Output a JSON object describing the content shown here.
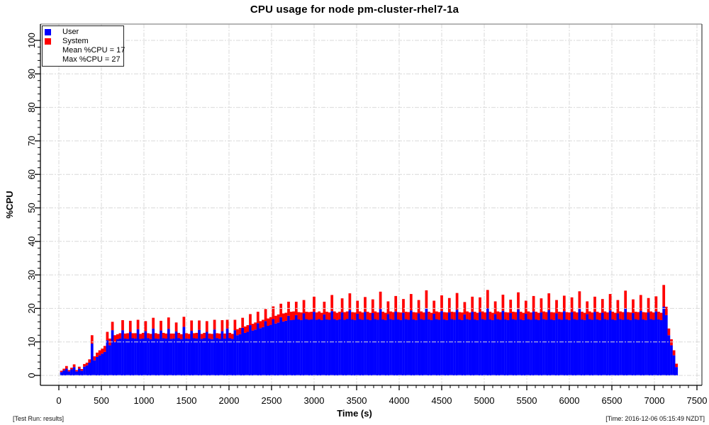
{
  "page": {
    "title": "CPU usage for node pm-cluster-rhel7-1a"
  },
  "footer": {
    "left": "[Test Run: results]",
    "right": "[Time: 2016-12-06 05:15:49 NZDT]"
  },
  "legend": {
    "items": [
      {
        "label": "User",
        "color": "#0000ff"
      },
      {
        "label": "System",
        "color": "#ff0000"
      }
    ],
    "mean_line": "Mean %CPU = 17",
    "max_line": "Max %CPU = 27"
  },
  "chart_data": {
    "type": "area",
    "stacked": true,
    "title": "CPU usage for node pm-cluster-rhel7-1a",
    "xlabel": "Time (s)",
    "ylabel": "%CPU",
    "xlim": [
      0,
      7500
    ],
    "ylim": [
      0,
      100
    ],
    "x_ticks": [
      0,
      500,
      1000,
      1500,
      2000,
      2500,
      3000,
      3500,
      4000,
      4500,
      5000,
      5500,
      6000,
      6500,
      7000,
      7500
    ],
    "y_ticks": [
      0,
      10,
      20,
      30,
      40,
      50,
      60,
      70,
      80,
      90,
      100
    ],
    "x_minor_step": 100,
    "y_minor_step": 2,
    "grid_on": true,
    "grid_color": "#d9d9d9",
    "legend_position": "top-left",
    "stats": {
      "mean_cpu": 17,
      "max_cpu": 27
    },
    "t0": 30,
    "dt": 30,
    "series": [
      {
        "name": "User",
        "color": "#0000ff",
        "values": [
          1,
          1.5,
          2,
          1.2,
          1.8,
          2.5,
          1.2,
          2,
          1.4,
          2.6,
          3,
          3.8,
          9.5,
          4.5,
          5.5,
          6,
          6.5,
          7,
          10.5,
          9,
          13.5,
          10,
          10.8,
          11,
          13.5,
          11,
          10.9,
          13,
          11.1,
          11,
          13.8,
          10.9,
          11,
          13.2,
          11.1,
          10.8,
          14,
          11,
          10.9,
          13.4,
          11.1,
          11,
          13.9,
          10.9,
          11,
          13.1,
          11.1,
          10.8,
          14.5,
          11,
          10.9,
          13.3,
          11.1,
          11,
          13.6,
          10.9,
          11.1,
          13,
          11,
          10.8,
          13.7,
          11.1,
          10.9,
          13.2,
          11,
          14,
          11.1,
          10.9,
          13.5,
          12,
          12.3,
          14.2,
          12.7,
          13,
          15,
          13.4,
          13.7,
          15.6,
          14.1,
          14.4,
          16.2,
          14.8,
          15.1,
          16.8,
          15.5,
          15.8,
          17.4,
          16.1,
          16.3,
          17.8,
          16.5,
          16.6,
          18,
          16.7,
          16.5,
          18.5,
          16.8,
          16.6,
          16.7,
          19,
          16.6,
          16.8,
          16.5,
          18.2,
          16.7,
          16.6,
          19.2,
          16.8,
          16.5,
          16.7,
          18.8,
          16.6,
          16.9,
          19.5,
          16.7,
          16.5,
          18.4,
          16.8,
          16.6,
          19,
          16.7,
          16.5,
          18.6,
          16.8,
          16.6,
          19.8,
          16.7,
          16.5,
          18.3,
          16.8,
          16.6,
          19.1,
          16.7,
          16.5,
          18.7,
          16.8,
          16.6,
          19.4,
          16.7,
          16.5,
          18.5,
          16.8,
          16.6,
          19.9,
          16.7,
          16.5,
          18.4,
          16.8,
          16.6,
          19.2,
          16.7,
          16.5,
          18.8,
          16.8,
          16.6,
          19.6,
          16.7,
          16.5,
          18.2,
          16.8,
          16.6,
          19,
          16.7,
          16.5,
          18.9,
          16.8,
          16.6,
          20,
          16.7,
          16.5,
          18.3,
          16.8,
          16.6,
          19.3,
          16.7,
          16.5,
          18.6,
          16.8,
          16.6,
          19.7,
          16.7,
          16.5,
          18.4,
          16.8,
          16.6,
          19.1,
          16.7,
          16.5,
          18.8,
          16.8,
          16.6,
          19.5,
          16.7,
          16.5,
          18.5,
          16.8,
          16.6,
          19.2,
          16.7,
          16.5,
          18.9,
          16.8,
          16.6,
          19.8,
          16.7,
          16.5,
          18.3,
          16.8,
          16.6,
          19,
          16.7,
          16.5,
          18.7,
          16.8,
          16.6,
          19.4,
          16.7,
          16.5,
          18.5,
          16.8,
          16.6,
          19.9,
          16.7,
          16.5,
          18.6,
          16.8,
          16.6,
          19.3,
          16.7,
          16.5,
          18.8,
          16.8,
          16.6,
          19.1,
          16.7,
          16.5,
          20.5,
          18,
          12,
          9,
          6,
          2.5
        ]
      },
      {
        "name": "System",
        "color": "#ff0000",
        "values": [
          0.4,
          0.5,
          0.8,
          0.4,
          0.5,
          0.8,
          0.4,
          0.6,
          0.5,
          0.8,
          0.8,
          1,
          2.5,
          1.2,
          1.3,
          1.5,
          1.5,
          1.8,
          2.5,
          2,
          2.5,
          2,
          1.5,
          1.6,
          3,
          1.5,
          1.7,
          3.3,
          1.5,
          1.6,
          2.8,
          1.5,
          1.7,
          3,
          1.5,
          1.6,
          3.2,
          1.6,
          1.5,
          2.9,
          1.6,
          1.5,
          3.4,
          1.6,
          1.5,
          2.7,
          1.6,
          1.5,
          3,
          1.6,
          1.5,
          3.1,
          1.5,
          1.7,
          2.8,
          1.5,
          1.6,
          3.2,
          1.5,
          1.6,
          2.9,
          1.5,
          1.6,
          3.3,
          1.5,
          2.6,
          1.6,
          1.5,
          3.1,
          1.8,
          1.9,
          3,
          1.9,
          2,
          3.3,
          2,
          2.1,
          3.4,
          2.1,
          2.2,
          3.6,
          2.2,
          2.3,
          3.8,
          2.3,
          2.4,
          4,
          2.4,
          2.4,
          4.2,
          2.5,
          2.5,
          4,
          2.2,
          2.3,
          4,
          2.2,
          2.3,
          2.3,
          4.5,
          2.2,
          2.3,
          2.2,
          3.8,
          2.3,
          2.2,
          4.8,
          2.3,
          2.2,
          2.3,
          4.2,
          2.3,
          2.2,
          5,
          2.2,
          2.3,
          3.9,
          2.3,
          2.2,
          4.4,
          2.3,
          2.2,
          4.1,
          2.3,
          2.2,
          5.2,
          2.3,
          2.2,
          3.8,
          2.3,
          2.3,
          4.6,
          2.2,
          2.3,
          4.1,
          2.2,
          2.3,
          4.9,
          2.2,
          2.3,
          4,
          2.3,
          2.2,
          5.5,
          2.3,
          2.2,
          3.9,
          2.3,
          2.3,
          4.7,
          2.2,
          2.3,
          4.3,
          2.2,
          2.3,
          5,
          2.2,
          2.3,
          3.7,
          2.3,
          2.2,
          4.5,
          2.3,
          2.2,
          4.4,
          2.3,
          2.2,
          5.5,
          2.3,
          2.2,
          3.8,
          2.3,
          2.3,
          4.8,
          2.2,
          2.3,
          4,
          2.2,
          2.3,
          5.1,
          2.3,
          2.2,
          3.9,
          2.3,
          2.2,
          4.6,
          2.3,
          2.2,
          4.2,
          2.3,
          2.3,
          5,
          2.2,
          2.3,
          4,
          2.2,
          2.3,
          4.6,
          2.2,
          2.3,
          4.4,
          2.3,
          2.2,
          5.3,
          2.3,
          2.2,
          3.8,
          2.3,
          2.2,
          4.5,
          2.3,
          2.2,
          4.1,
          2.3,
          2.2,
          4.9,
          2.3,
          2.2,
          4,
          2.3,
          2.3,
          5.4,
          2.2,
          2.3,
          4.1,
          2.2,
          2.3,
          4.7,
          2.2,
          2.3,
          4.3,
          2.3,
          2.2,
          4.5,
          2.3,
          2.2,
          6.5,
          2.5,
          2,
          1.8,
          1.5,
          1
        ]
      }
    ]
  }
}
